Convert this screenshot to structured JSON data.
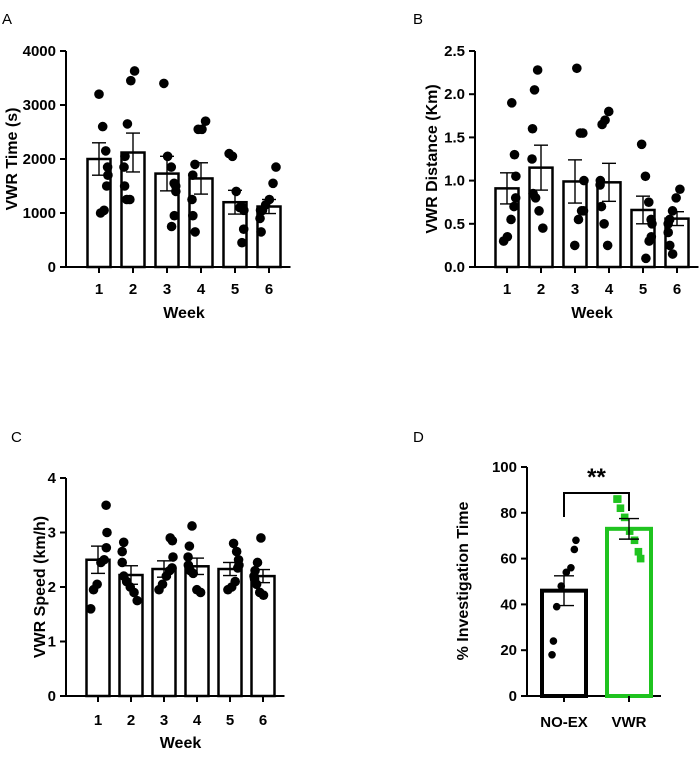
{
  "chart_data": [
    {
      "id": "A",
      "panel_label": "A",
      "type": "bar",
      "xlabel": "Week",
      "ylabel": "VWR Time (s)",
      "ylim": [
        0,
        4000
      ],
      "yticks": [
        "0",
        "1000",
        "2000",
        "3000",
        "4000"
      ],
      "categories": [
        "1",
        "2",
        "3",
        "4",
        "5",
        "6"
      ],
      "values": [
        2000,
        2120,
        1730,
        1640,
        1200,
        1120
      ],
      "sem": [
        300,
        360,
        320,
        290,
        220,
        130
      ],
      "points": [
        [
          3200,
          2600,
          2150,
          1850,
          1700,
          1500,
          1050,
          1000
        ],
        [
          3630,
          3450,
          2650,
          2050,
          1850,
          1500,
          1250,
          1250
        ],
        [
          3400,
          2050,
          1850,
          1550,
          1500,
          1400,
          950,
          750
        ],
        [
          2700,
          2550,
          2550,
          1900,
          1700,
          1250,
          950,
          650
        ],
        [
          2100,
          2050,
          1400,
          1100,
          1100,
          1050,
          700,
          450
        ],
        [
          1850,
          1550,
          1250,
          1150,
          1050,
          1050,
          900,
          650
        ]
      ]
    },
    {
      "id": "B",
      "panel_label": "B",
      "type": "bar",
      "xlabel": "Week",
      "ylabel": "VWR Distance (Km)",
      "ylim": [
        0,
        2.5
      ],
      "yticks": [
        "0.0",
        "0.5",
        "1.0",
        "1.5",
        "2.0",
        "2.5"
      ],
      "categories": [
        "1",
        "2",
        "3",
        "4",
        "5",
        "6"
      ],
      "values": [
        0.91,
        1.15,
        0.99,
        0.98,
        0.66,
        0.56
      ],
      "sem": [
        0.18,
        0.26,
        0.25,
        0.22,
        0.16,
        0.08
      ],
      "points": [
        [
          1.9,
          1.3,
          1.05,
          0.8,
          0.7,
          0.55,
          0.35,
          0.3
        ],
        [
          2.28,
          2.05,
          1.6,
          1.25,
          0.85,
          0.8,
          0.65,
          0.45
        ],
        [
          2.3,
          1.55,
          1.55,
          1.0,
          0.65,
          0.65,
          0.55,
          0.25
        ],
        [
          1.8,
          1.7,
          1.65,
          1.0,
          0.95,
          0.7,
          0.5,
          0.25
        ],
        [
          1.42,
          1.05,
          0.75,
          0.55,
          0.5,
          0.35,
          0.3,
          0.1
        ],
        [
          0.9,
          0.8,
          0.65,
          0.55,
          0.5,
          0.4,
          0.25,
          0.15
        ]
      ]
    },
    {
      "id": "C",
      "panel_label": "C",
      "type": "bar",
      "xlabel": "Week",
      "ylabel": "VWR Speed (km/h)",
      "ylim": [
        0,
        4
      ],
      "yticks": [
        "0",
        "1",
        "2",
        "3",
        "4"
      ],
      "categories": [
        "1",
        "2",
        "3",
        "4",
        "5",
        "6"
      ],
      "values": [
        2.5,
        2.22,
        2.33,
        2.38,
        2.33,
        2.2
      ],
      "sem": [
        0.25,
        0.17,
        0.15,
        0.15,
        0.12,
        0.12
      ],
      "points": [
        [
          3.5,
          3.0,
          2.72,
          2.5,
          2.45,
          2.05,
          1.95,
          1.6
        ],
        [
          2.82,
          2.65,
          2.45,
          2.2,
          2.1,
          2.0,
          1.9,
          1.75
        ],
        [
          2.9,
          2.85,
          2.55,
          2.35,
          2.3,
          2.2,
          2.05,
          1.95
        ],
        [
          3.12,
          2.75,
          2.55,
          2.4,
          2.3,
          2.25,
          1.95,
          1.9
        ],
        [
          2.8,
          2.65,
          2.5,
          2.4,
          2.35,
          2.1,
          2.0,
          1.95
        ],
        [
          2.9,
          2.45,
          2.3,
          2.2,
          2.15,
          2.05,
          1.9,
          1.85
        ]
      ]
    },
    {
      "id": "D",
      "panel_label": "D",
      "type": "bar",
      "xlabel": "",
      "ylabel": "% Investigation Time",
      "ylim": [
        0,
        100
      ],
      "yticks": [
        "0",
        "20",
        "40",
        "60",
        "80",
        "100"
      ],
      "categories": [
        "NO-EX",
        "VWR"
      ],
      "values": [
        46,
        73
      ],
      "sem": [
        6.5,
        4.5
      ],
      "bar_colors": [
        "#000000",
        "#1fc31f"
      ],
      "points": [
        [
          68,
          64,
          56,
          54,
          48,
          39,
          24,
          18
        ],
        [
          86,
          86,
          82,
          78,
          72,
          68,
          63,
          60
        ]
      ],
      "annotation": "**"
    }
  ]
}
